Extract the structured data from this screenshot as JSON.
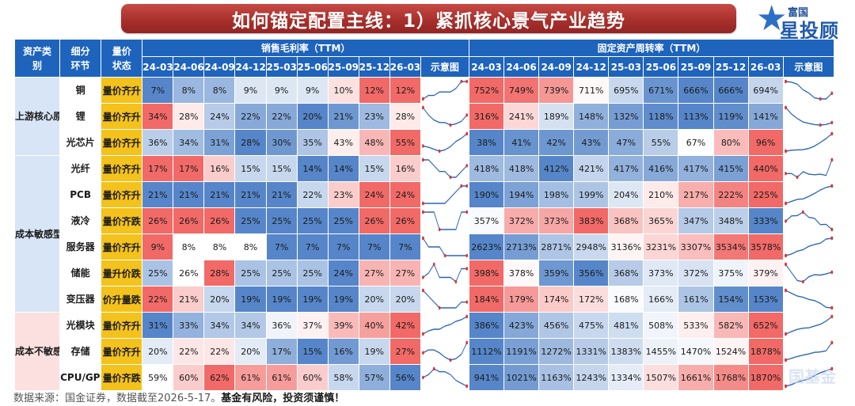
{
  "title": "如何锚定配置主线：1）紧抓核心景气产业趋势",
  "logo": {
    "top": "富国",
    "main": "星投顾"
  },
  "watermark": "国基金",
  "header": {
    "asset_class": "资产类别",
    "segment": "细分环节",
    "status": "量价状态",
    "group1": "销售毛利率（TTM）",
    "group2": "固定资产周转率（TTM）",
    "periods": [
      "24-03",
      "24-06",
      "24-09",
      "24-12",
      "25-03",
      "25-06",
      "25-09",
      "25-12",
      "26-03"
    ],
    "spark_label": "示意图"
  },
  "categories": [
    {
      "name": "上游核心原材料",
      "rows": 3,
      "tone": "blue"
    },
    {
      "name": "成本敏感型资产",
      "rows": 6,
      "tone": "blue"
    },
    {
      "name": "成本不敏感型资产",
      "rows": 3,
      "tone": "pink"
    }
  ],
  "rows": [
    {
      "segment": "铜",
      "status": "量价齐升",
      "gm": [
        "7%",
        "8%",
        "8%",
        "9%",
        "9%",
        "9%",
        "10%",
        "12%",
        "12%"
      ],
      "fa": [
        "752%",
        "749%",
        "739%",
        "711%",
        "695%",
        "671%",
        "666%",
        "666%",
        "694%"
      ]
    },
    {
      "segment": "锂",
      "status": "量价齐升",
      "gm": [
        "34%",
        "28%",
        "24%",
        "22%",
        "22%",
        "20%",
        "21%",
        "23%",
        "28%"
      ],
      "fa": [
        "316%",
        "241%",
        "189%",
        "148%",
        "132%",
        "118%",
        "113%",
        "119%",
        "141%"
      ]
    },
    {
      "segment": "光芯片",
      "status": "量价齐升",
      "gm": [
        "36%",
        "34%",
        "31%",
        "28%",
        "30%",
        "35%",
        "43%",
        "48%",
        "55%"
      ],
      "fa": [
        "38%",
        "41%",
        "42%",
        "43%",
        "47%",
        "55%",
        "67%",
        "80%",
        "96%"
      ]
    },
    {
      "segment": "光纤",
      "status": "量价齐升",
      "gm": [
        "17%",
        "17%",
        "16%",
        "15%",
        "15%",
        "14%",
        "14%",
        "15%",
        "16%"
      ],
      "fa": [
        "418%",
        "418%",
        "412%",
        "421%",
        "417%",
        "416%",
        "417%",
        "415%",
        "440%"
      ]
    },
    {
      "segment": "PCB",
      "status": "量价齐升",
      "gm": [
        "21%",
        "21%",
        "21%",
        "21%",
        "21%",
        "22%",
        "23%",
        "24%",
        "24%"
      ],
      "fa": [
        "190%",
        "194%",
        "198%",
        "199%",
        "204%",
        "210%",
        "217%",
        "222%",
        "225%"
      ]
    },
    {
      "segment": "液冷",
      "status": "量价齐跌",
      "gm": [
        "26%",
        "26%",
        "26%",
        "25%",
        "25%",
        "25%",
        "25%",
        "26%",
        "26%"
      ],
      "fa": [
        "357%",
        "372%",
        "373%",
        "383%",
        "368%",
        "365%",
        "347%",
        "348%",
        "333%"
      ]
    },
    {
      "segment": "服务器",
      "status": "量价齐升",
      "gm": [
        "9%",
        "8%",
        "8%",
        "8%",
        "7%",
        "7%",
        "7%",
        "7%",
        "7%"
      ],
      "fa": [
        "2623%",
        "2713%",
        "2871%",
        "2948%",
        "3136%",
        "3231%",
        "3307%",
        "3534%",
        "3578%"
      ]
    },
    {
      "segment": "储能",
      "status": "量升价跌",
      "gm": [
        "25%",
        "26%",
        "28%",
        "25%",
        "25%",
        "25%",
        "24%",
        "27%",
        "27%"
      ],
      "fa": [
        "398%",
        "378%",
        "359%",
        "356%",
        "368%",
        "373%",
        "372%",
        "375%",
        "379%"
      ]
    },
    {
      "segment": "变压器",
      "status": "价升量跌",
      "gm": [
        "22%",
        "21%",
        "20%",
        "19%",
        "19%",
        "19%",
        "19%",
        "20%",
        "20%"
      ],
      "fa": [
        "184%",
        "179%",
        "174%",
        "172%",
        "168%",
        "166%",
        "161%",
        "154%",
        "153%"
      ]
    },
    {
      "segment": "光模块",
      "status": "量价齐升",
      "gm": [
        "31%",
        "33%",
        "34%",
        "34%",
        "36%",
        "37%",
        "39%",
        "40%",
        "42%"
      ],
      "fa": [
        "386%",
        "423%",
        "456%",
        "475%",
        "481%",
        "508%",
        "533%",
        "582%",
        "652%"
      ]
    },
    {
      "segment": "存储",
      "status": "量价齐升",
      "gm": [
        "20%",
        "22%",
        "22%",
        "20%",
        "17%",
        "15%",
        "16%",
        "19%",
        "27%"
      ],
      "fa": [
        "1112%",
        "1191%",
        "1272%",
        "1331%",
        "1383%",
        "1455%",
        "1470%",
        "1524%",
        "1878%"
      ]
    },
    {
      "segment": "CPU/GPU",
      "status": "量价齐跌",
      "gm": [
        "59%",
        "60%",
        "62%",
        "61%",
        "61%",
        "60%",
        "58%",
        "57%",
        "56%"
      ],
      "fa": [
        "941%",
        "1021%",
        "1163%",
        "1243%",
        "1334%",
        "1507%",
        "1661%",
        "1768%",
        "1870%"
      ]
    }
  ],
  "colors": {
    "high": "#f0625f",
    "mid": "#ffffff",
    "low": "#4d80c6",
    "header_bg": "#1e63bc",
    "status_bg": "#f3c21c",
    "spark_line": "#2a63b8",
    "spark_dot": "#d9352f"
  },
  "footer": {
    "source": "数据来源：国金证券，数据截至2026-5-17。",
    "warning": "基金有风险，投资须谨慎！"
  }
}
